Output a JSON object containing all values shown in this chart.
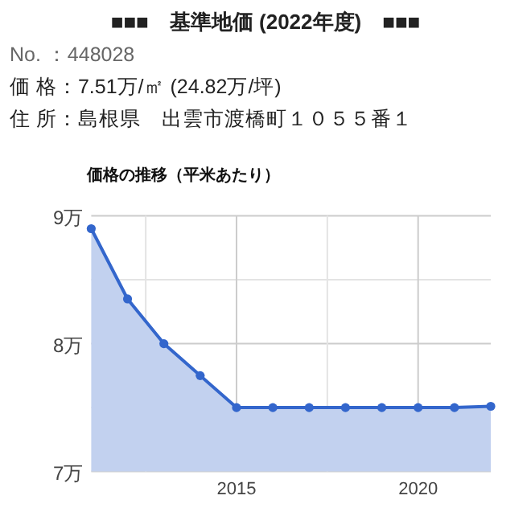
{
  "chart_data": {
    "type": "area",
    "title": "■■■　基準地価 (2022年度)　■■■",
    "subtitle": "価格の推移（平米あたり）",
    "annotations": [
      "No. ：448028",
      "価 格：7.51万/㎡ (24.82万/坪)",
      "住 所：島根県　出雲市渡橋町１０５５番１"
    ],
    "x": [
      2011,
      2012,
      2013,
      2014,
      2015,
      2016,
      2017,
      2018,
      2019,
      2020,
      2021,
      2022
    ],
    "values": [
      8.9,
      8.35,
      8.0,
      7.75,
      7.5,
      7.5,
      7.5,
      7.5,
      7.5,
      7.5,
      7.5,
      7.51
    ],
    "color": "#3366cc",
    "xlim": [
      2011,
      2022
    ],
    "xticks": [
      {
        "value": 2012.5,
        "label": null
      },
      2015,
      {
        "value": 2017.5,
        "label": null
      },
      2020
    ],
    "ylim": [
      7,
      9
    ],
    "yticks": [
      {
        "value": 7,
        "label": "7万"
      },
      {
        "value": 7.5,
        "label": null
      },
      {
        "value": 8,
        "label": "8万"
      },
      {
        "value": 8.5,
        "label": null
      },
      {
        "value": 9,
        "label": "9万"
      }
    ],
    "grid": true,
    "marker": "circle",
    "line_style": "solid"
  }
}
